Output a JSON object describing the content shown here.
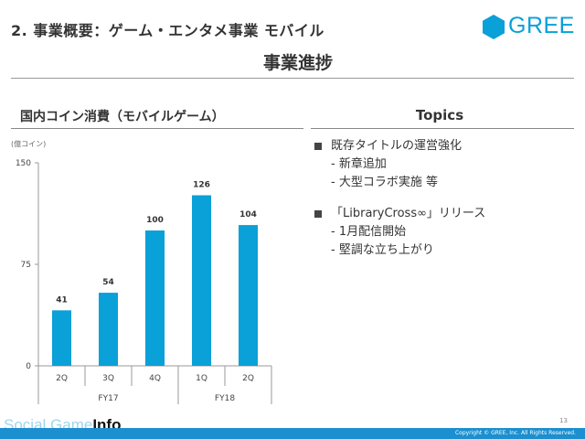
{
  "header": {
    "title": "2. 事業概要：ゲーム・エンタメ事業 モバイル",
    "logo_text": "GREE",
    "subtitle": "事業進捗"
  },
  "left_section": {
    "title": "国内コイン消費（モバイルゲーム）",
    "unit": "(億コイン)"
  },
  "chart_data": {
    "type": "bar",
    "title": "国内コイン消費（モバイルゲーム）",
    "ylabel": "(億コイン)",
    "xlabel": "",
    "categories": [
      "2Q",
      "3Q",
      "4Q",
      "1Q",
      "2Q"
    ],
    "groups": [
      {
        "label": "FY17",
        "categories": [
          "2Q",
          "3Q",
          "4Q"
        ]
      },
      {
        "label": "FY18",
        "categories": [
          "1Q",
          "2Q"
        ]
      }
    ],
    "values": [
      41,
      54,
      100,
      126,
      104
    ],
    "data_labels": [
      "41",
      "54",
      "100",
      "126",
      "104"
    ],
    "ylim": [
      0,
      150
    ],
    "yticks": [
      0,
      75,
      150
    ],
    "ytick_labels": [
      "0",
      "75",
      "150"
    ],
    "grid": false,
    "bar_color": "#0aa0d8"
  },
  "right_section": {
    "title": "Topics",
    "items": [
      {
        "head": "既存タイトルの運営強化",
        "subs": [
          "- 新章追加",
          "- 大型コラボ実施 等"
        ]
      },
      {
        "head": "「LibraryCross∞」リリース",
        "subs": [
          "- 1月配信開始",
          "- 堅調な立ち上がり"
        ]
      }
    ]
  },
  "footer": {
    "brand_prefix": "Social Game",
    "brand_suffix": "Info",
    "page_number": "13",
    "copyright": "Copyright © GREE, Inc. All Rights Reserved."
  },
  "colors": {
    "accent": "#0aa0d8",
    "footer_bar": "#1b8fd0",
    "text": "#333333"
  }
}
